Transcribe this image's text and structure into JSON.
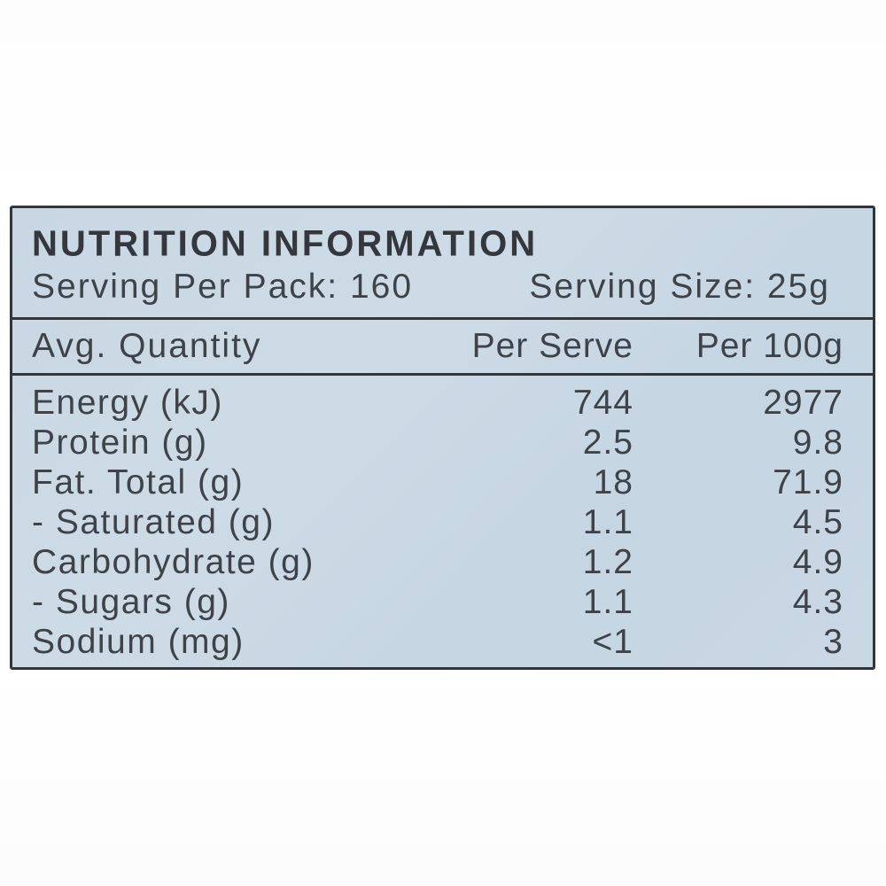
{
  "panel": {
    "title": "NUTRITION INFORMATION",
    "serving_per_pack": "Serving Per Pack: 160",
    "serving_size": "Serving Size: 25g",
    "columns": {
      "label": "Avg. Quantity",
      "per_serve": "Per Serve",
      "per_100g": "Per 100g"
    },
    "rows": [
      {
        "label": "Energy (kJ)",
        "per_serve": "744",
        "per_100g": "2977"
      },
      {
        "label": "Protein (g)",
        "per_serve": "2.5",
        "per_100g": "9.8"
      },
      {
        "label": "Fat. Total (g)",
        "per_serve": "18",
        "per_100g": "71.9"
      },
      {
        "label": "- Saturated (g)",
        "per_serve": "1.1",
        "per_100g": "4.5"
      },
      {
        "label": "Carbohydrate (g)",
        "per_serve": "1.2",
        "per_100g": "4.9"
      },
      {
        "label": "- Sugars (g)",
        "per_serve": "1.1",
        "per_100g": "4.3"
      },
      {
        "label": "Sodium (mg)",
        "per_serve": "<1",
        "per_100g": "3"
      }
    ],
    "colors": {
      "panel_background": "#c8d7e3",
      "border": "#31363b",
      "text": "#3e4349",
      "page_background": "#fefefe"
    }
  }
}
